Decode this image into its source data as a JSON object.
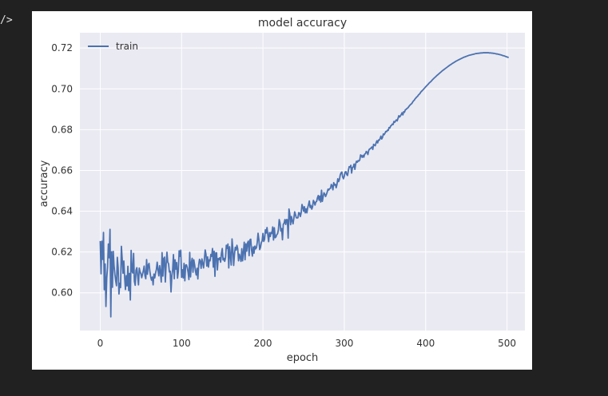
{
  "cell": {
    "prompt_glyph": "/>"
  },
  "chart_data": {
    "type": "line",
    "title": "model accuracy",
    "xlabel": "epoch",
    "ylabel": "accuracy",
    "xlim": [
      -25,
      522
    ],
    "ylim": [
      0.5815,
      0.7275
    ],
    "xticks": [
      0,
      100,
      200,
      300,
      400,
      500
    ],
    "xtick_labels": [
      "0",
      "100",
      "200",
      "300",
      "400",
      "500"
    ],
    "yticks": [
      0.6,
      0.62,
      0.64,
      0.66,
      0.68,
      0.7,
      0.72
    ],
    "ytick_labels": [
      "0.60",
      "0.62",
      "0.64",
      "0.66",
      "0.68",
      "0.70",
      "0.72"
    ],
    "grid": true,
    "legend": {
      "position": "top-left",
      "entries": [
        "train"
      ]
    },
    "series": [
      {
        "name": "train",
        "color": "#4c72b0",
        "x_start": 0,
        "x_step": 1,
        "values": [
          0.6254,
          0.6093,
          0.6253,
          0.6164,
          0.6296,
          0.6015,
          0.6141,
          0.5933,
          0.6072,
          0.6125,
          0.6239,
          0.6172,
          0.6311,
          0.5882,
          0.6201,
          0.6027,
          0.6203,
          0.6132,
          0.6091,
          0.6059,
          0.6035,
          0.6174,
          0.6124,
          0.5994,
          0.6047,
          0.6026,
          0.6228,
          0.6165,
          0.6096,
          0.6156,
          0.6075,
          0.6016,
          0.6084,
          0.6034,
          0.613,
          0.6011,
          0.6095,
          0.5965,
          0.6208,
          0.6107,
          0.6097,
          0.6193,
          0.6056,
          0.6037,
          0.6111,
          0.6123,
          0.6082,
          0.6039,
          0.6121,
          0.6103,
          0.6093,
          0.6074,
          0.6092,
          0.6108,
          0.6131,
          0.6084,
          0.6069,
          0.6163,
          0.6091,
          0.6136,
          0.6144,
          0.6105,
          0.6079,
          0.6062,
          0.6077,
          0.6039,
          0.6092,
          0.6073,
          0.6097,
          0.6114,
          0.615,
          0.6112,
          0.6083,
          0.6133,
          0.61,
          0.6053,
          0.6197,
          0.6082,
          0.6168,
          0.6175,
          0.6053,
          0.6139,
          0.6199,
          0.615,
          0.6142,
          0.6102,
          0.6106,
          0.6004,
          0.6083,
          0.6113,
          0.6187,
          0.6069,
          0.6162,
          0.6116,
          0.6148,
          0.6072,
          0.6105,
          0.6206,
          0.6179,
          0.6209,
          0.6076,
          0.6113,
          0.6073,
          0.6144,
          0.6059,
          0.6136,
          0.6137,
          0.6124,
          0.61,
          0.6065,
          0.6198,
          0.6078,
          0.6147,
          0.6169,
          0.6101,
          0.6162,
          0.6138,
          0.6107,
          0.6087,
          0.612,
          0.6068,
          0.6136,
          0.6164,
          0.6155,
          0.612,
          0.6166,
          0.6144,
          0.6122,
          0.6163,
          0.621,
          0.6188,
          0.6131,
          0.6176,
          0.6126,
          0.6162,
          0.6157,
          0.6188,
          0.6179,
          0.6217,
          0.6126,
          0.6204,
          0.6081,
          0.6196,
          0.6196,
          0.6112,
          0.6168,
          0.6163,
          0.6172,
          0.615,
          0.6194,
          0.6217,
          0.6161,
          0.6169,
          0.6154,
          0.6172,
          0.6233,
          0.6218,
          0.6239,
          0.6122,
          0.6226,
          0.6183,
          0.6136,
          0.6264,
          0.6215,
          0.6134,
          0.6188,
          0.6223,
          0.621,
          0.6233,
          0.6216,
          0.6157,
          0.6189,
          0.6174,
          0.6154,
          0.6216,
          0.6157,
          0.6199,
          0.6248,
          0.6162,
          0.624,
          0.6204,
          0.6244,
          0.6253,
          0.6182,
          0.626,
          0.6263,
          0.6209,
          0.618,
          0.6225,
          0.6194,
          0.6229,
          0.6215,
          0.6221,
          0.6247,
          0.6292,
          0.6261,
          0.6212,
          0.6223,
          0.6246,
          0.6255,
          0.6291,
          0.6252,
          0.6262,
          0.6309,
          0.6293,
          0.632,
          0.6284,
          0.6251,
          0.6295,
          0.6276,
          0.6296,
          0.6291,
          0.6323,
          0.6259,
          0.6319,
          0.627,
          0.6274,
          0.6285,
          0.629,
          0.6309,
          0.6359,
          0.6342,
          0.6303,
          0.6315,
          0.626,
          0.6336,
          0.6341,
          0.6359,
          0.6335,
          0.6359,
          0.6358,
          0.6268,
          0.6411,
          0.6387,
          0.6334,
          0.6374,
          0.6353,
          0.6338,
          0.6366,
          0.6397,
          0.6383,
          0.6368,
          0.6367,
          0.6368,
          0.6393,
          0.6391,
          0.6374,
          0.6392,
          0.6433,
          0.642,
          0.64,
          0.6422,
          0.6392,
          0.6412,
          0.6392,
          0.6417,
          0.6432,
          0.645,
          0.6418,
          0.6428,
          0.641,
          0.6422,
          0.6453,
          0.6445,
          0.643,
          0.6445,
          0.6448,
          0.6466,
          0.6477,
          0.6454,
          0.6474,
          0.6445,
          0.6503,
          0.6448,
          0.6471,
          0.649,
          0.6484,
          0.6472,
          0.6482,
          0.6494,
          0.6508,
          0.6504,
          0.6511,
          0.6512,
          0.6531,
          0.6525,
          0.6505,
          0.654,
          0.6528,
          0.6532,
          0.6515,
          0.6531,
          0.6559,
          0.6545,
          0.6555,
          0.6578,
          0.6588,
          0.6592,
          0.6568,
          0.6559,
          0.6572,
          0.6592,
          0.6594,
          0.658,
          0.6575,
          0.66,
          0.6618,
          0.6616,
          0.6625,
          0.6587,
          0.6614,
          0.6617,
          0.6631,
          0.6605,
          0.6632,
          0.6645,
          0.664,
          0.6648,
          0.6646,
          0.6651,
          0.6676,
          0.6673,
          0.6664,
          0.6674,
          0.6665,
          0.668,
          0.6682,
          0.6693,
          0.6689,
          0.6678,
          0.6698,
          0.6705,
          0.6706,
          0.6711,
          0.6715,
          0.6703,
          0.6728,
          0.6724,
          0.6721,
          0.6734,
          0.6745,
          0.6735,
          0.6749,
          0.6748,
          0.6756,
          0.6768,
          0.6754,
          0.6762,
          0.6779,
          0.6775,
          0.6782,
          0.6791,
          0.679,
          0.6797,
          0.6796,
          0.681,
          0.6808,
          0.6818,
          0.6821,
          0.6827,
          0.6825,
          0.684,
          0.6836,
          0.6842,
          0.6848,
          0.6843,
          0.6855,
          0.6868,
          0.6862,
          0.6867,
          0.6874,
          0.6883,
          0.6872,
          0.6888,
          0.6885,
          0.6897,
          0.6899,
          0.6904,
          0.6906,
          0.6911,
          0.6917,
          0.6921,
          0.6925,
          0.6928,
          0.6935,
          0.6941,
          0.6944,
          0.6951,
          0.6955,
          0.696,
          0.6963,
          0.6969,
          0.6973,
          0.6977,
          0.6984,
          0.6988,
          0.6992,
          0.6996,
          0.7001,
          0.7005,
          0.701,
          0.7014,
          0.7018,
          0.7022,
          0.7027,
          0.7031,
          0.7034,
          0.7038,
          0.7043,
          0.7047,
          0.7051,
          0.7055,
          0.7058,
          0.7062,
          0.7066,
          0.7069,
          0.7073,
          0.7076,
          0.708,
          0.7083,
          0.7087,
          0.709,
          0.7093,
          0.7096,
          0.7099,
          0.7102,
          0.7105,
          0.7108,
          0.7111,
          0.7114,
          0.7117,
          0.7119,
          0.7122,
          0.7125,
          0.7127,
          0.713,
          0.7132,
          0.7135,
          0.7137,
          0.7139,
          0.7141,
          0.7143,
          0.7145,
          0.7147,
          0.7149,
          0.7151,
          0.7153,
          0.7155,
          0.7156,
          0.7158,
          0.7159,
          0.7161,
          0.7162,
          0.7164,
          0.7165,
          0.7166,
          0.7167,
          0.7168,
          0.7169,
          0.717,
          0.7171,
          0.7172,
          0.7173,
          0.7173,
          0.7174,
          0.7174,
          0.7175,
          0.7175,
          0.7176,
          0.7176,
          0.7176,
          0.7177,
          0.7177,
          0.7177,
          0.7177,
          0.7177,
          0.7177,
          0.7177,
          0.7176,
          0.7176,
          0.7176,
          0.7175,
          0.7175,
          0.7174,
          0.7174,
          0.7173,
          0.7172,
          0.7171,
          0.7171,
          0.717,
          0.7169,
          0.7168,
          0.7167,
          0.7166,
          0.7164,
          0.7163,
          0.7162,
          0.7161,
          0.7159,
          0.7158,
          0.7156,
          0.7155,
          0.7153
        ]
      }
    ]
  }
}
